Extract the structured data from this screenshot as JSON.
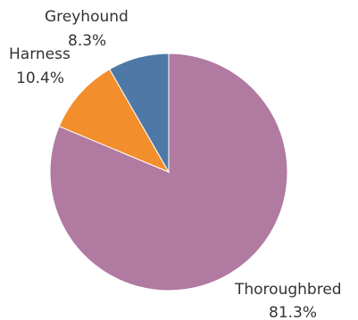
{
  "chart_data": {
    "type": "pie",
    "title": "",
    "slices": [
      {
        "label": "Thoroughbred",
        "value_label": "81.3%",
        "value": 81.3,
        "color": "#b07aa1"
      },
      {
        "label": "Harness",
        "value_label": "10.4%",
        "value": 10.4,
        "color": "#f28e2b"
      },
      {
        "label": "Greyhound",
        "value_label": "8.3%",
        "value": 8.3,
        "color": "#4e79a7"
      }
    ]
  }
}
